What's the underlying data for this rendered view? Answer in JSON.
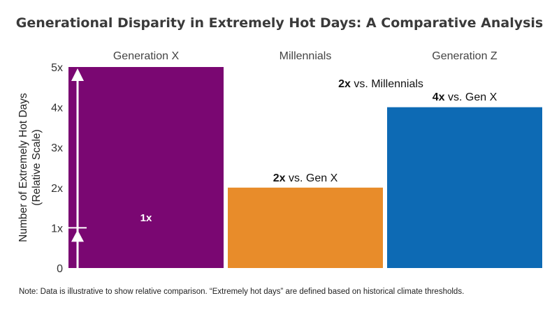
{
  "chart_data": {
    "type": "bar",
    "title": "Generational Disparity in Extremely Hot Days: A Comparative Analysis",
    "categories": [
      "Generation X",
      "Millennials",
      "Generation Z"
    ],
    "values": [
      1,
      2,
      4
    ],
    "colors": [
      "#7a0772",
      "#e88c2a",
      "#0d6ab4"
    ],
    "ylabel": "Number of Extremely Hot Days (Relative Scale)",
    "ylabel_lines": [
      "Number of Extremely Hot Days",
      "(Relative Scale)"
    ],
    "yticks": [
      "0",
      "1x",
      "2x",
      "3x",
      "4x",
      "5x"
    ],
    "ylim": [
      0,
      5
    ],
    "grid": false,
    "bar_labels": [
      [
        {
          "bold": "1x",
          "text": ""
        }
      ],
      [
        {
          "bold": "2x",
          "text": " vs. Gen X"
        }
      ],
      [
        {
          "bold": "2x",
          "text": " vs. Millennials"
        },
        {
          "bold": "4x",
          "text": " vs. Gen X"
        }
      ]
    ]
  },
  "note": "Note: Data is illustrative to show relative comparison. “Extremely hot days” are defined based on historical climate thresholds."
}
